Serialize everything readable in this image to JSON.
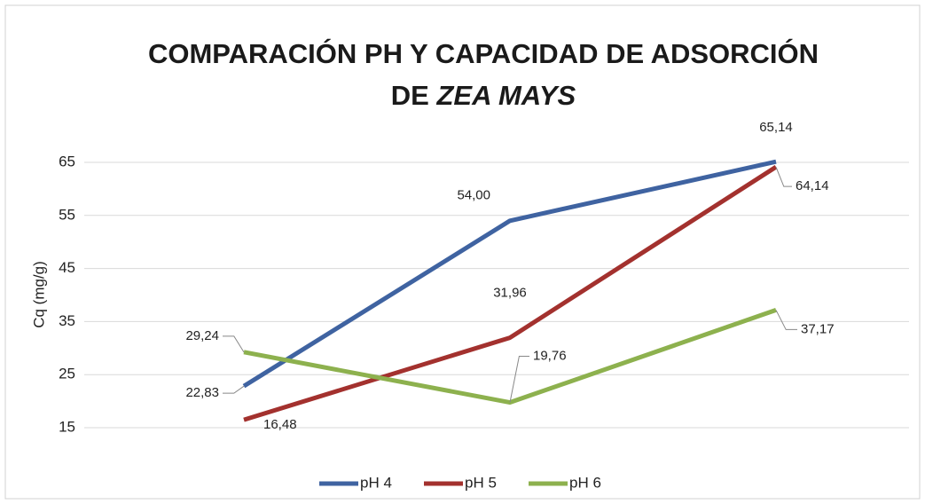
{
  "chart_data": {
    "type": "line",
    "title": {
      "line1": "COMPARACIÓN PH Y CAPACIDAD DE ADSORCIÓN",
      "line2": "DE",
      "line2_italic": "ZEA MAYS"
    },
    "ylabel": "Cq (mg/g)",
    "categories": [
      null,
      null,
      null
    ],
    "series": [
      {
        "name": "pH 4",
        "color": "#3f63a1",
        "values": [
          22.83,
          54.0,
          65.14
        ],
        "value_labels": [
          "22,83",
          "54,00",
          "65,14"
        ]
      },
      {
        "name": "pH 5",
        "color": "#a3312e",
        "values": [
          16.48,
          31.96,
          64.14
        ],
        "value_labels": [
          "16,48",
          "31,96",
          "64,14"
        ]
      },
      {
        "name": "pH 6",
        "color": "#8db14e",
        "values": [
          29.24,
          19.76,
          37.17
        ],
        "value_labels": [
          "29,24",
          "19,76",
          "37,17"
        ]
      }
    ],
    "ylim": [
      15,
      65
    ],
    "yticks": [
      15,
      25,
      35,
      45,
      55,
      65
    ],
    "grid": true,
    "legend": "bottom"
  }
}
